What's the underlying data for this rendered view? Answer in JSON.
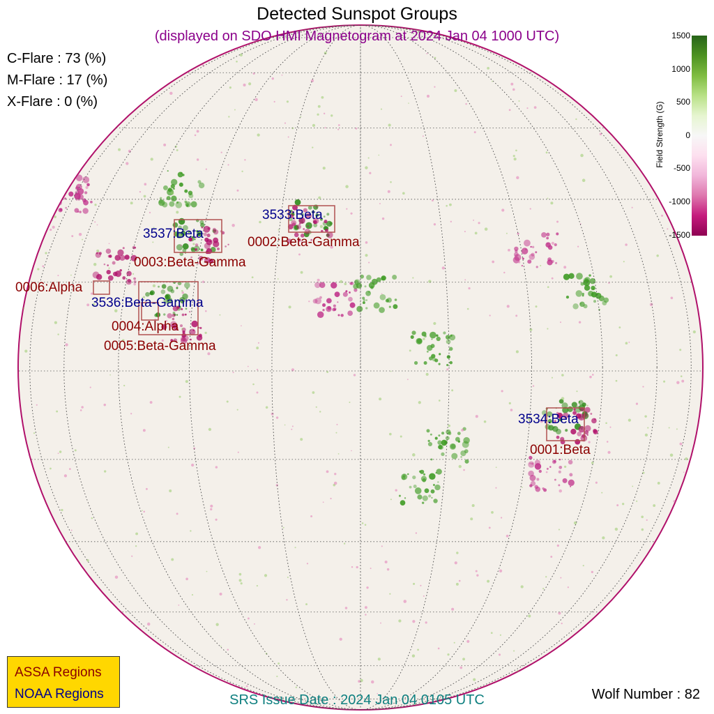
{
  "title": "Detected Sunspot Groups",
  "subtitle": "(displayed on SDO HMI Magnetogram at 2024 Jan 04 1000 UTC)",
  "flares": {
    "c": "C-Flare : 73 (%)",
    "m": "M-Flare : 17 (%)",
    "x": "X-Flare :  0 (%)"
  },
  "colorbar": {
    "label": "Field Strength (G)",
    "ticks": [
      "1500",
      "1000",
      "500",
      "0",
      "-500",
      "-1000",
      "-1500"
    ],
    "range": [
      -1500,
      1500
    ],
    "colors": {
      "positive": "#276419",
      "negative": "#8e0152"
    }
  },
  "regions": {
    "noaa": [
      {
        "label": "3537:Beta"
      },
      {
        "label": "3533:Beta"
      },
      {
        "label": "3536:Beta-Gamma"
      },
      {
        "label": "3534:Beta"
      }
    ],
    "assa": [
      {
        "label": "0003:Beta-Gamma"
      },
      {
        "label": "0002:Beta-Gamma"
      },
      {
        "label": "0006:Alpha"
      },
      {
        "label": "0004:Alpha"
      },
      {
        "label": "0005:Beta-Gamma"
      },
      {
        "label": "0001:Beta"
      }
    ],
    "colors": {
      "assa": "#8b0000",
      "noaa": "#00008b",
      "box": "#b05050"
    }
  },
  "legend": {
    "assa": "ASSA Regions",
    "noaa": "NOAA Regions"
  },
  "srs": "SRS Issue Date : 2024 Jan 04 0105 UTC",
  "wolf": "Wolf Number : 82"
}
